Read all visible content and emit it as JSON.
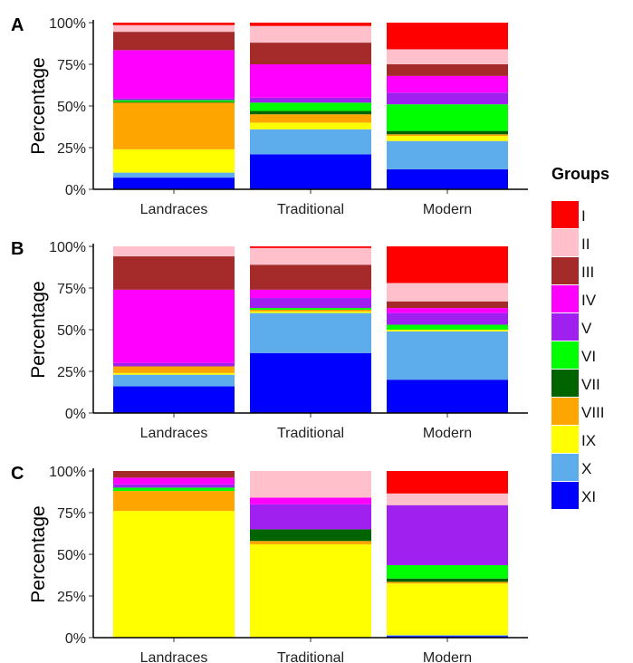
{
  "legend": {
    "title": "Groups",
    "position": "right",
    "entries": [
      {
        "label": "I",
        "color": "#FF0000"
      },
      {
        "label": "II",
        "color": "#FFC0CB"
      },
      {
        "label": "III",
        "color": "#A52A2A"
      },
      {
        "label": "IV",
        "color": "#FF00FF"
      },
      {
        "label": "V",
        "color": "#A020F0"
      },
      {
        "label": "VI",
        "color": "#00FF00"
      },
      {
        "label": "VII",
        "color": "#006400"
      },
      {
        "label": "VIII",
        "color": "#FFA500"
      },
      {
        "label": "IX",
        "color": "#FFFF00"
      },
      {
        "label": "X",
        "color": "#5DADEC"
      },
      {
        "label": "XI",
        "color": "#0000FF"
      }
    ]
  },
  "chart_data": [
    {
      "panel": "A",
      "type": "bar",
      "stacked": true,
      "ylabel": "Percentage",
      "ylim": [
        0,
        100
      ],
      "yticks": [
        "0%",
        "25%",
        "50%",
        "75%",
        "100%"
      ],
      "categories": [
        "Landraces",
        "Traditional",
        "Modern"
      ],
      "series": [
        {
          "name": "XI",
          "values": [
            7,
            21,
            12
          ]
        },
        {
          "name": "X",
          "values": [
            3,
            15,
            17
          ]
        },
        {
          "name": "IX",
          "values": [
            14,
            4,
            3
          ]
        },
        {
          "name": "VIII",
          "values": [
            28,
            5,
            1
          ]
        },
        {
          "name": "VII",
          "values": [
            0.5,
            2,
            2
          ]
        },
        {
          "name": "VI",
          "values": [
            1,
            5,
            16
          ]
        },
        {
          "name": "V",
          "values": [
            1,
            3,
            7
          ]
        },
        {
          "name": "IV",
          "values": [
            29,
            20,
            10
          ]
        },
        {
          "name": "III",
          "values": [
            11,
            13,
            7
          ]
        },
        {
          "name": "II",
          "values": [
            4,
            10,
            9
          ]
        },
        {
          "name": "I",
          "values": [
            1.5,
            2,
            16
          ]
        }
      ]
    },
    {
      "panel": "B",
      "type": "bar",
      "stacked": true,
      "ylabel": "Percentage",
      "ylim": [
        0,
        100
      ],
      "yticks": [
        "0%",
        "25%",
        "50%",
        "75%",
        "100%"
      ],
      "categories": [
        "Landraces",
        "Traditional",
        "Modern"
      ],
      "series": [
        {
          "name": "XI",
          "values": [
            16,
            36,
            20
          ]
        },
        {
          "name": "X",
          "values": [
            7,
            24,
            29
          ]
        },
        {
          "name": "IX",
          "values": [
            1,
            1,
            1
          ]
        },
        {
          "name": "VIII",
          "values": [
            4,
            1,
            0
          ]
        },
        {
          "name": "VII",
          "values": [
            0,
            0,
            0
          ]
        },
        {
          "name": "VI",
          "values": [
            0,
            1,
            3
          ]
        },
        {
          "name": "V",
          "values": [
            2,
            6,
            7
          ]
        },
        {
          "name": "IV",
          "values": [
            44,
            5,
            3
          ]
        },
        {
          "name": "III",
          "values": [
            20,
            15,
            4
          ]
        },
        {
          "name": "II",
          "values": [
            6,
            10,
            11
          ]
        },
        {
          "name": "I",
          "values": [
            0,
            1,
            22
          ]
        }
      ]
    },
    {
      "panel": "C",
      "type": "bar",
      "stacked": true,
      "ylabel": "Percentage",
      "ylim": [
        0,
        100
      ],
      "yticks": [
        "0%",
        "25%",
        "50%",
        "75%",
        "100%"
      ],
      "categories": [
        "Landraces",
        "Traditional",
        "Modern"
      ],
      "series": [
        {
          "name": "XI",
          "values": [
            0,
            0,
            1
          ]
        },
        {
          "name": "X",
          "values": [
            0,
            0,
            0.5
          ]
        },
        {
          "name": "IX",
          "values": [
            76,
            56,
            31
          ]
        },
        {
          "name": "VIII",
          "values": [
            12,
            2,
            1
          ]
        },
        {
          "name": "VII",
          "values": [
            0,
            7,
            2
          ]
        },
        {
          "name": "VI",
          "values": [
            2,
            0,
            8
          ]
        },
        {
          "name": "V",
          "values": [
            2,
            15,
            36
          ]
        },
        {
          "name": "IV",
          "values": [
            4,
            4,
            0
          ]
        },
        {
          "name": "III",
          "values": [
            4,
            0,
            0
          ]
        },
        {
          "name": "II",
          "values": [
            0,
            16,
            7
          ]
        },
        {
          "name": "I",
          "values": [
            0,
            0,
            13.5
          ]
        }
      ]
    }
  ]
}
